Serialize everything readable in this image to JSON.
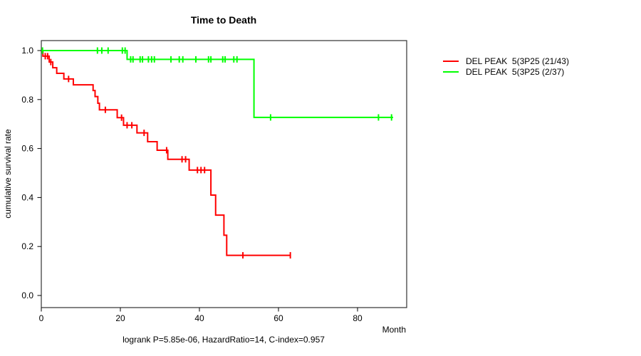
{
  "chart_data": {
    "type": "line",
    "variant": "kaplan-meier-step",
    "title": "Time to Death",
    "xlabel": "Month",
    "ylabel": "cumulative survival rate",
    "annotation": "logrank P=5.85e-06, HazardRatio=14, C-index=0.957",
    "xlim": [
      0,
      92
    ],
    "ylim": [
      -0.05,
      1.04
    ],
    "x_ticks": [
      0,
      20,
      40,
      60,
      80
    ],
    "y_ticks": [
      0.0,
      0.2,
      0.4,
      0.6,
      0.8,
      1.0
    ],
    "grid": false,
    "legend_position": "right-outside",
    "frame_color": "#333333",
    "series": [
      {
        "name": "DEL PEAK  5(3P25 (21/43)",
        "color": "#ff0000",
        "start": [
          0,
          1.0
        ],
        "steps": [
          [
            0.4,
            0.977
          ],
          [
            2.0,
            0.953
          ],
          [
            2.9,
            0.93
          ],
          [
            3.9,
            0.907
          ],
          [
            5.7,
            0.884
          ],
          [
            8.1,
            0.86
          ],
          [
            13.1,
            0.837
          ],
          [
            13.6,
            0.812
          ],
          [
            14.3,
            0.785
          ],
          [
            14.7,
            0.758
          ],
          [
            19.2,
            0.726
          ],
          [
            20.8,
            0.695
          ],
          [
            24.2,
            0.664
          ],
          [
            26.9,
            0.628
          ],
          [
            29.3,
            0.593
          ],
          [
            32.0,
            0.556
          ],
          [
            37.4,
            0.512
          ],
          [
            42.9,
            0.41
          ],
          [
            44.1,
            0.328
          ],
          [
            46.2,
            0.246
          ],
          [
            46.9,
            0.164
          ]
        ],
        "end_x": 63,
        "censor_marks": [
          [
            1.0,
            0.977
          ],
          [
            1.6,
            0.977
          ],
          [
            2.4,
            0.953
          ],
          [
            6.9,
            0.884
          ],
          [
            16.2,
            0.758
          ],
          [
            20.3,
            0.726
          ],
          [
            21.7,
            0.695
          ],
          [
            22.9,
            0.695
          ],
          [
            26.0,
            0.664
          ],
          [
            31.7,
            0.593
          ],
          [
            35.6,
            0.556
          ],
          [
            36.5,
            0.556
          ],
          [
            39.5,
            0.512
          ],
          [
            40.4,
            0.512
          ],
          [
            41.3,
            0.512
          ],
          [
            51.0,
            0.164
          ],
          [
            63.0,
            0.164
          ]
        ]
      },
      {
        "name": "DEL PEAK  5(3P25 (2/37)",
        "color": "#00ff00",
        "start": [
          0,
          1.0
        ],
        "steps": [
          [
            21.7,
            0.964
          ],
          [
            53.8,
            0.727
          ]
        ],
        "end_x": 89,
        "censor_marks": [
          [
            0.3,
            1.0
          ],
          [
            14.2,
            1.0
          ],
          [
            15.3,
            1.0
          ],
          [
            16.9,
            1.0
          ],
          [
            20.5,
            1.0
          ],
          [
            21.2,
            1.0
          ],
          [
            22.6,
            0.964
          ],
          [
            23.2,
            0.964
          ],
          [
            25.0,
            0.964
          ],
          [
            25.6,
            0.964
          ],
          [
            27.1,
            0.964
          ],
          [
            27.9,
            0.964
          ],
          [
            28.6,
            0.964
          ],
          [
            32.8,
            0.964
          ],
          [
            34.9,
            0.964
          ],
          [
            35.8,
            0.964
          ],
          [
            39.1,
            0.964
          ],
          [
            42.3,
            0.964
          ],
          [
            42.9,
            0.964
          ],
          [
            45.9,
            0.964
          ],
          [
            46.5,
            0.964
          ],
          [
            48.7,
            0.964
          ],
          [
            49.5,
            0.964
          ],
          [
            58.0,
            0.727
          ],
          [
            85.3,
            0.727
          ],
          [
            88.6,
            0.727
          ]
        ]
      }
    ]
  }
}
